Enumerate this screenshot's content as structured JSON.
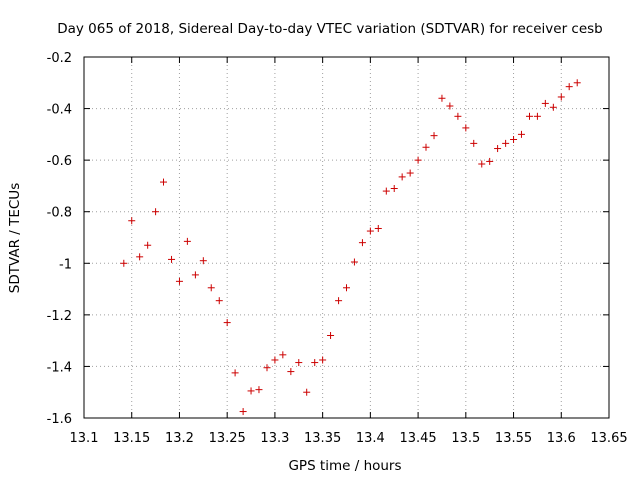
{
  "chart_data": {
    "type": "scatter",
    "title": "Day 065 of 2018, Sidereal Day-to-day VTEC variation (SDTVAR) for receiver cesb",
    "xlabel": "GPS time / hours",
    "ylabel": "SDTVAR / TECUs",
    "xlim": [
      13.1,
      13.65
    ],
    "ylim": [
      -1.6,
      -0.2
    ],
    "xticks": [
      13.1,
      13.15,
      13.2,
      13.25,
      13.3,
      13.35,
      13.4,
      13.45,
      13.5,
      13.55,
      13.6,
      13.65
    ],
    "xtick_labels": [
      "13.1",
      "13.15",
      "13.2",
      "13.25",
      "13.3",
      "13.35",
      "13.4",
      "13.45",
      "13.5",
      "13.55",
      "13.6",
      "13.65"
    ],
    "yticks": [
      -1.6,
      -1.4,
      -1.2,
      -1,
      -0.8,
      -0.6,
      -0.4,
      -0.2
    ],
    "ytick_labels": [
      "-1.6",
      "-1.4",
      "-1.2",
      "-1",
      "-0.8",
      "-0.6",
      "-0.4",
      "-0.2"
    ],
    "grid": true,
    "marker_color": "#cc0000",
    "marker": "plus",
    "series": [
      {
        "name": "SDTVAR",
        "points": [
          [
            13.1417,
            -1.0
          ],
          [
            13.15,
            -0.835
          ],
          [
            13.1583,
            -0.975
          ],
          [
            13.1667,
            -0.93
          ],
          [
            13.175,
            -0.8
          ],
          [
            13.1833,
            -0.685
          ],
          [
            13.1917,
            -0.985
          ],
          [
            13.2,
            -1.07
          ],
          [
            13.2083,
            -0.915
          ],
          [
            13.2167,
            -1.045
          ],
          [
            13.225,
            -0.99
          ],
          [
            13.2333,
            -1.095
          ],
          [
            13.2417,
            -1.145
          ],
          [
            13.25,
            -1.23
          ],
          [
            13.2583,
            -1.425
          ],
          [
            13.2667,
            -1.575
          ],
          [
            13.275,
            -1.495
          ],
          [
            13.2833,
            -1.49
          ],
          [
            13.2917,
            -1.405
          ],
          [
            13.3,
            -1.375
          ],
          [
            13.3083,
            -1.355
          ],
          [
            13.3167,
            -1.42
          ],
          [
            13.325,
            -1.385
          ],
          [
            13.3333,
            -1.5
          ],
          [
            13.3417,
            -1.385
          ],
          [
            13.35,
            -1.375
          ],
          [
            13.3583,
            -1.28
          ],
          [
            13.3667,
            -1.145
          ],
          [
            13.375,
            -1.095
          ],
          [
            13.3833,
            -0.995
          ],
          [
            13.3917,
            -0.92
          ],
          [
            13.4,
            -0.875
          ],
          [
            13.4083,
            -0.865
          ],
          [
            13.4167,
            -0.72
          ],
          [
            13.425,
            -0.71
          ],
          [
            13.4333,
            -0.665
          ],
          [
            13.4417,
            -0.65
          ],
          [
            13.45,
            -0.6
          ],
          [
            13.4583,
            -0.55
          ],
          [
            13.4667,
            -0.505
          ],
          [
            13.475,
            -0.36
          ],
          [
            13.4833,
            -0.39
          ],
          [
            13.4917,
            -0.43
          ],
          [
            13.5,
            -0.475
          ],
          [
            13.5083,
            -0.535
          ],
          [
            13.5167,
            -0.615
          ],
          [
            13.525,
            -0.605
          ],
          [
            13.5333,
            -0.555
          ],
          [
            13.5417,
            -0.535
          ],
          [
            13.55,
            -0.52
          ],
          [
            13.5583,
            -0.5
          ],
          [
            13.5667,
            -0.43
          ],
          [
            13.575,
            -0.43
          ],
          [
            13.5833,
            -0.38
          ],
          [
            13.5917,
            -0.395
          ],
          [
            13.6,
            -0.355
          ],
          [
            13.6083,
            -0.315
          ],
          [
            13.6167,
            -0.3
          ]
        ]
      }
    ]
  }
}
